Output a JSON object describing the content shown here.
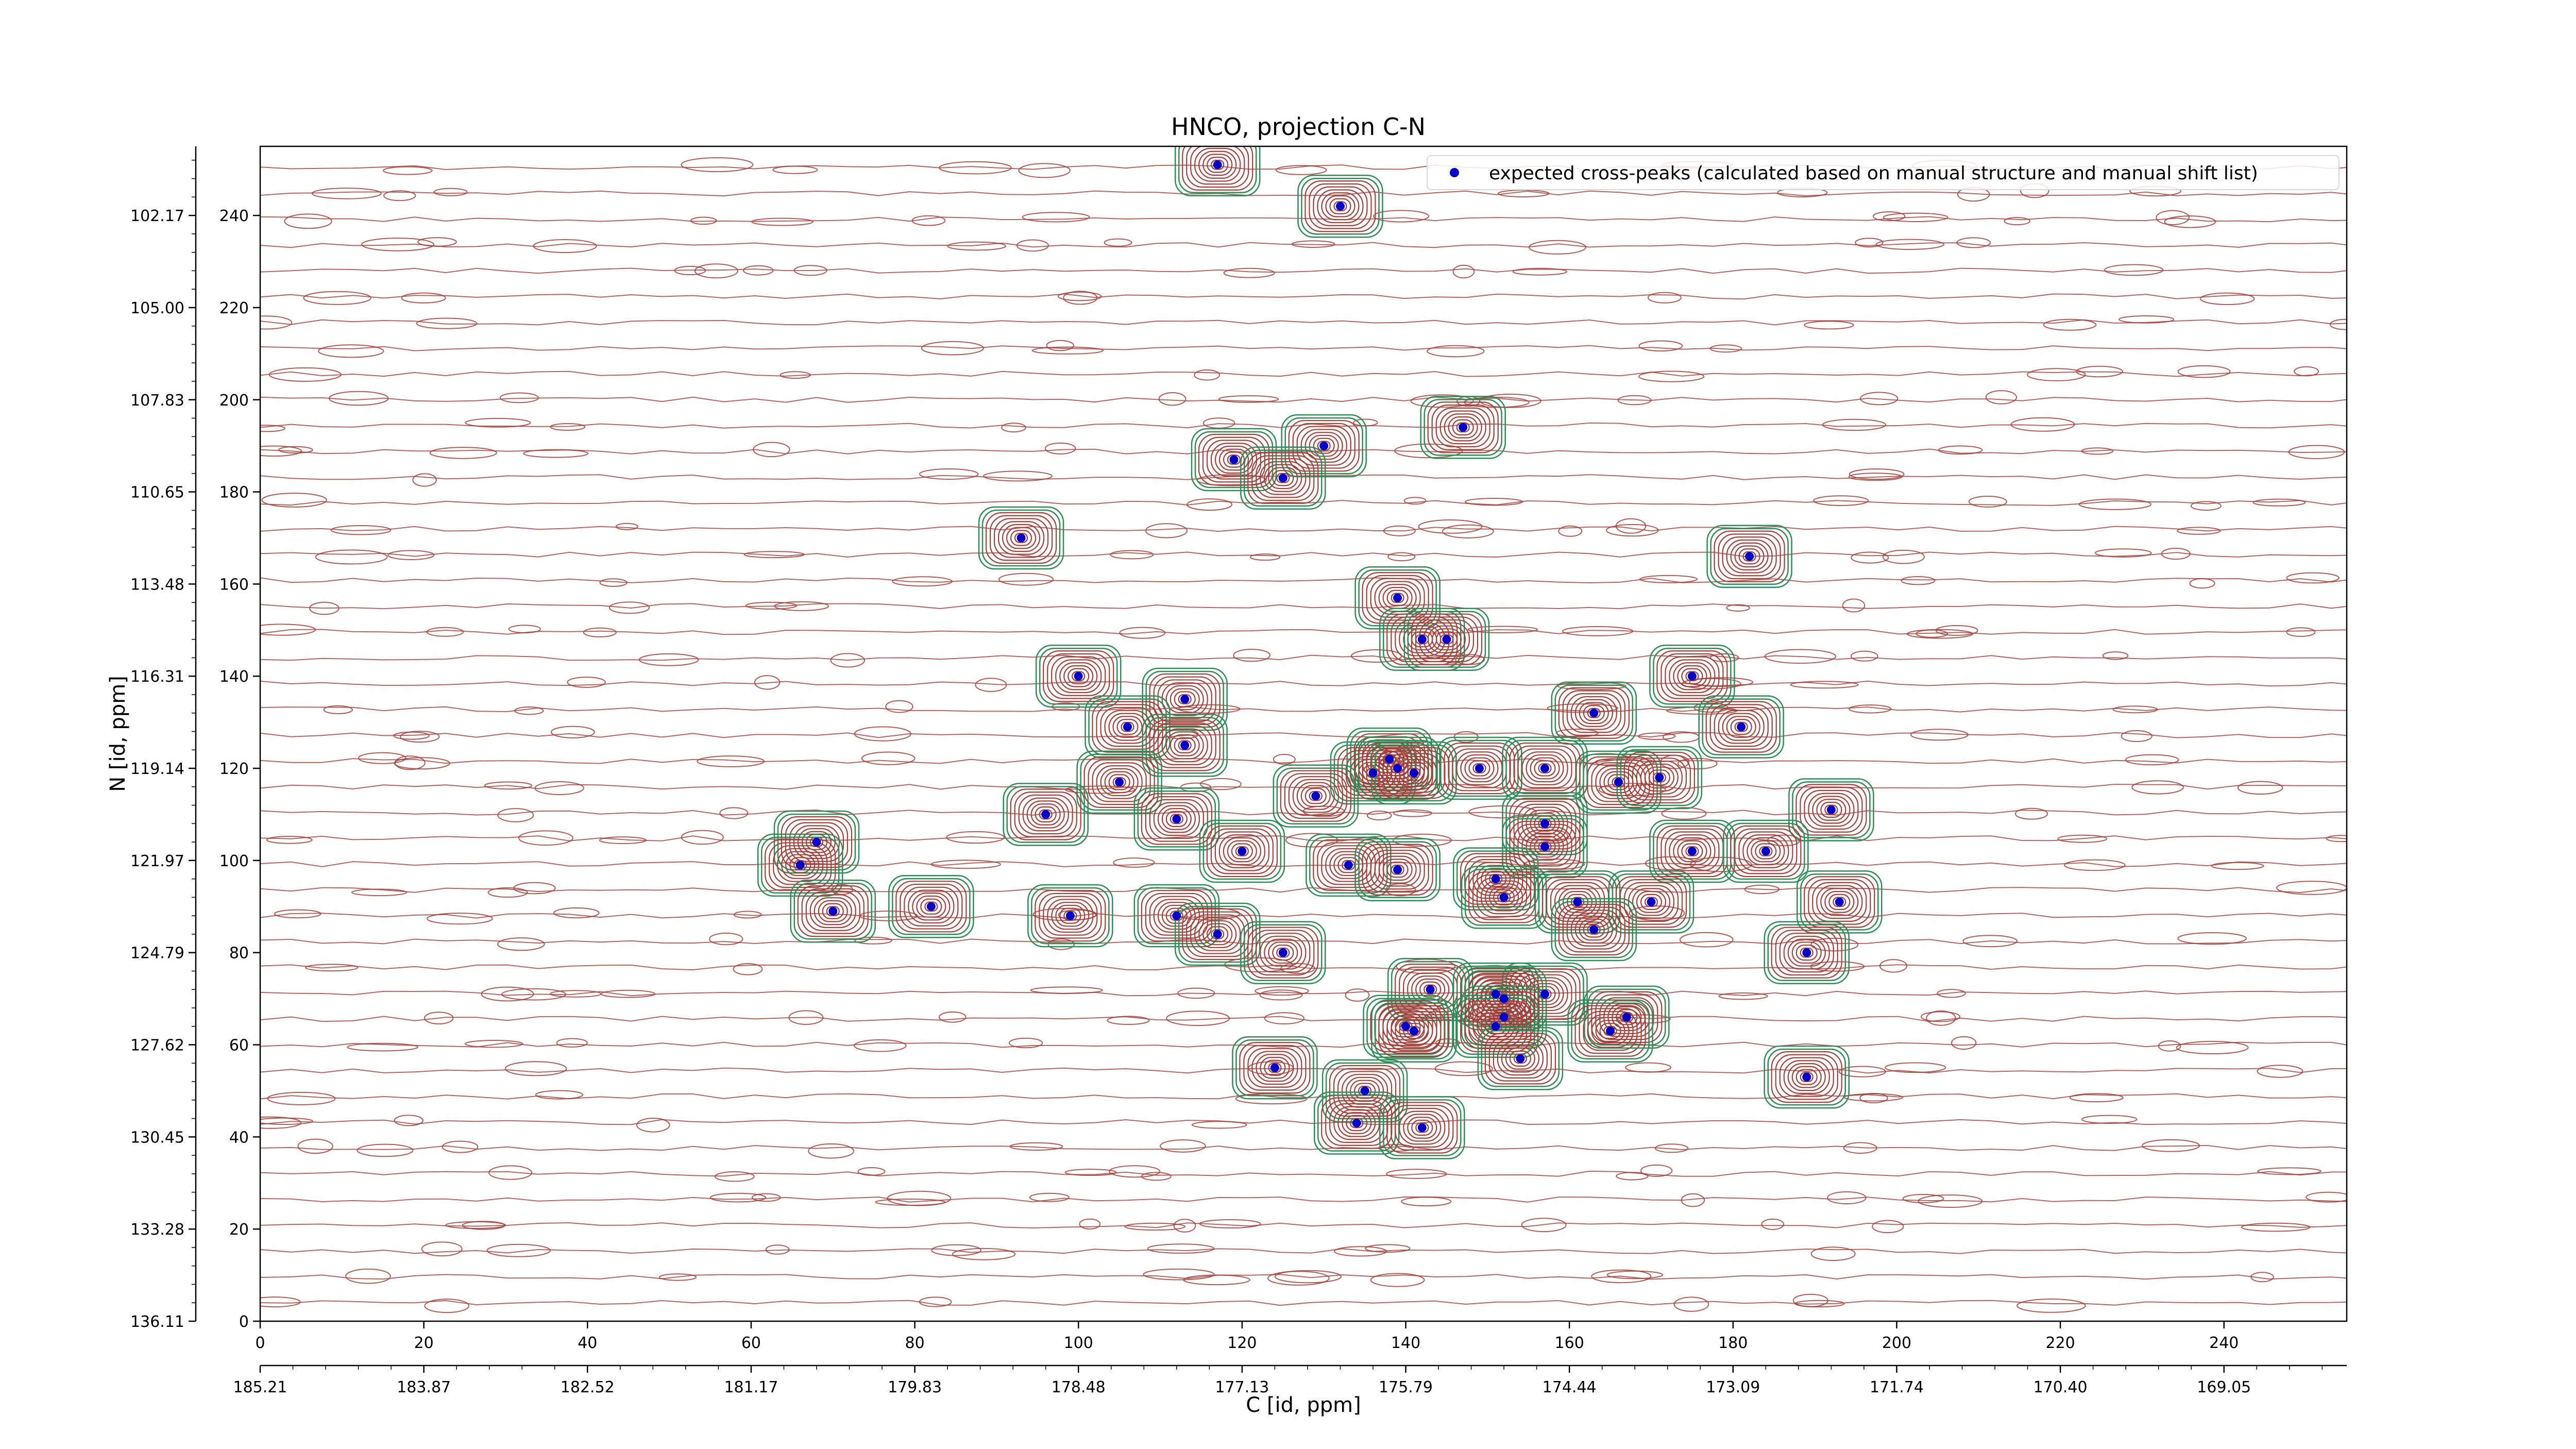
{
  "chart_data": {
    "type": "scatter",
    "title": "HNCO, projection C-N",
    "xlabel": "C [id, ppm]",
    "ylabel": "N [id, ppm]",
    "xlim": [
      0,
      255
    ],
    "ylim": [
      0,
      255
    ],
    "x_ticks_index": [
      "0",
      "20",
      "40",
      "60",
      "80",
      "100",
      "120",
      "140",
      "160",
      "180",
      "200",
      "220",
      "240"
    ],
    "x_ticks_ppm": [
      "185.21",
      "183.87",
      "182.52",
      "181.17",
      "179.83",
      "178.48",
      "177.13",
      "175.79",
      "174.44",
      "173.09",
      "171.74",
      "170.40",
      "169.05"
    ],
    "y_ticks_index": [
      "0",
      "20",
      "40",
      "60",
      "80",
      "100",
      "120",
      "140",
      "160",
      "180",
      "200",
      "220",
      "240"
    ],
    "y_ticks_ppm": [
      "136.11",
      "133.28",
      "130.45",
      "127.62",
      "124.79",
      "121.97",
      "119.14",
      "116.31",
      "113.48",
      "110.65",
      "107.83",
      "105.00",
      "102.17"
    ],
    "legend": {
      "label": "expected cross-peaks (calculated based on manual structure and manual shift list)",
      "position": "top-right"
    },
    "colors": {
      "positive_contour": "#a0403a",
      "negative_contour": "#2e8b57",
      "peak_marker": "#0000cc"
    },
    "grid": false,
    "series": [
      {
        "name": "expected cross-peaks (calculated based on manual structure and manual shift list)",
        "points": [
          [
            117,
            251
          ],
          [
            132,
            242
          ],
          [
            147,
            194
          ],
          [
            119,
            187
          ],
          [
            130,
            190
          ],
          [
            125,
            183
          ],
          [
            93,
            170
          ],
          [
            182,
            166
          ],
          [
            139,
            157
          ],
          [
            142,
            148
          ],
          [
            145,
            148
          ],
          [
            100,
            140
          ],
          [
            113,
            135
          ],
          [
            175,
            140
          ],
          [
            163,
            132
          ],
          [
            106,
            129
          ],
          [
            181,
            129
          ],
          [
            113,
            125
          ],
          [
            138,
            122
          ],
          [
            139,
            120
          ],
          [
            136,
            119
          ],
          [
            141,
            119
          ],
          [
            105,
            117
          ],
          [
            166,
            117
          ],
          [
            171,
            118
          ],
          [
            149,
            120
          ],
          [
            157,
            120
          ],
          [
            129,
            114
          ],
          [
            192,
            111
          ],
          [
            96,
            110
          ],
          [
            112,
            109
          ],
          [
            157,
            108
          ],
          [
            68,
            104
          ],
          [
            66,
            99
          ],
          [
            120,
            102
          ],
          [
            157,
            103
          ],
          [
            175,
            102
          ],
          [
            184,
            102
          ],
          [
            133,
            99
          ],
          [
            139,
            98
          ],
          [
            151,
            96
          ],
          [
            152,
            92
          ],
          [
            161,
            91
          ],
          [
            70,
            89
          ],
          [
            82,
            90
          ],
          [
            170,
            91
          ],
          [
            193,
            91
          ],
          [
            99,
            88
          ],
          [
            112,
            88
          ],
          [
            117,
            84
          ],
          [
            163,
            85
          ],
          [
            125,
            80
          ],
          [
            189,
            80
          ],
          [
            143,
            72
          ],
          [
            151,
            71
          ],
          [
            157,
            71
          ],
          [
            152,
            70
          ],
          [
            167,
            66
          ],
          [
            152,
            66
          ],
          [
            151,
            64
          ],
          [
            140,
            64
          ],
          [
            141,
            63
          ],
          [
            165,
            63
          ],
          [
            154,
            57
          ],
          [
            124,
            55
          ],
          [
            189,
            53
          ],
          [
            135,
            50
          ],
          [
            134,
            43
          ],
          [
            142,
            42
          ]
        ]
      }
    ]
  }
}
